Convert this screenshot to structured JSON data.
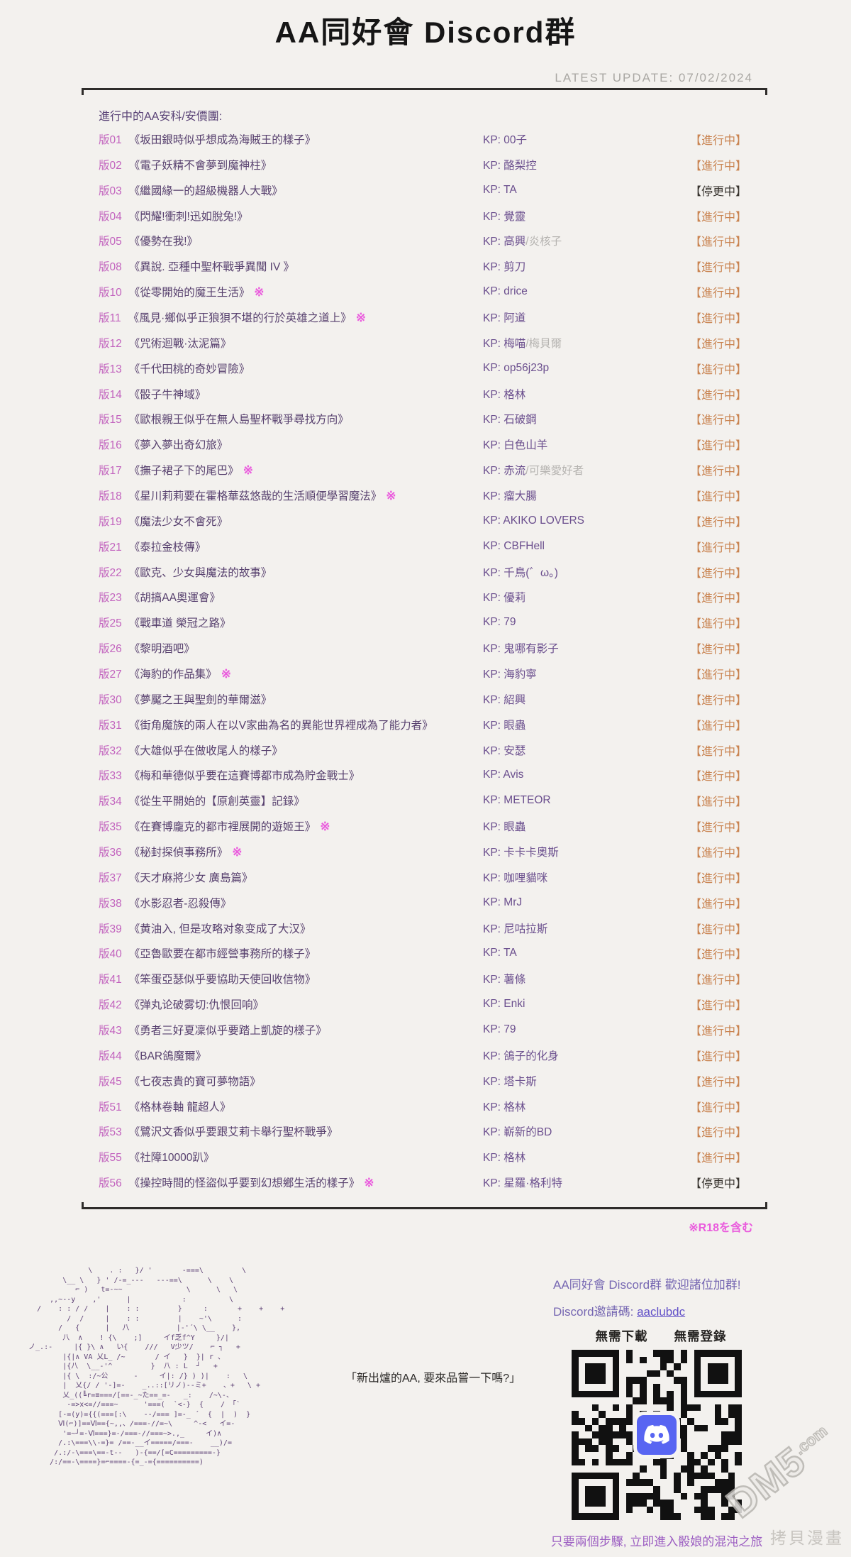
{
  "header": {
    "title": "AA同好會 Discord群",
    "latest_update": "LATEST UPDATE: 07/02/2024"
  },
  "section_label": "進行中的AA安科/安價團:",
  "kp_prefix": "KP: ",
  "r18_mark": "※",
  "r18_note": "※R18を含む",
  "boards": [
    {
      "id": "版01",
      "title": "《坂田銀時似乎想成為海賊王的樣子》",
      "r18": false,
      "kp": "00子",
      "kp_sub": "",
      "status": "【進行中】",
      "paused": false
    },
    {
      "id": "版02",
      "title": "《電子妖精不會夢到魔神柱》",
      "r18": false,
      "kp": "酪梨控",
      "kp_sub": "",
      "status": "【進行中】",
      "paused": false
    },
    {
      "id": "版03",
      "title": "《繼國緣一的超級機器人大戰》",
      "r18": false,
      "kp": "TA",
      "kp_sub": "",
      "status": "【停更中】",
      "paused": true
    },
    {
      "id": "版04",
      "title": "《閃耀!衝刺!迅如脫兔!》",
      "r18": false,
      "kp": "覺靈",
      "kp_sub": "",
      "status": "【進行中】",
      "paused": false
    },
    {
      "id": "版05",
      "title": "《優勢在我!》",
      "r18": false,
      "kp": "高興",
      "kp_sub": "/炎核子",
      "status": "【進行中】",
      "paused": false
    },
    {
      "id": "版08",
      "title": "《異說. 亞種中聖杯戰爭異聞 IV 》",
      "r18": false,
      "kp": "剪刀",
      "kp_sub": "",
      "status": "【進行中】",
      "paused": false
    },
    {
      "id": "版10",
      "title": "《從零開始的魔王生活》",
      "r18": true,
      "kp": "drice",
      "kp_sub": "",
      "status": "【進行中】",
      "paused": false
    },
    {
      "id": "版11",
      "title": "《風見·鄉似乎正狼狽不堪的行於英雄之道上》",
      "r18": true,
      "kp": "阿道",
      "kp_sub": "",
      "status": "【進行中】",
      "paused": false
    },
    {
      "id": "版12",
      "title": "《咒術迴戰·汰泥篇》",
      "r18": false,
      "kp": "梅喵",
      "kp_sub": "/梅貝爾",
      "status": "【進行中】",
      "paused": false
    },
    {
      "id": "版13",
      "title": "《千代田桃的奇妙冒險》",
      "r18": false,
      "kp": "op56j23p",
      "kp_sub": "",
      "status": "【進行中】",
      "paused": false
    },
    {
      "id": "版14",
      "title": "《骰子牛神域》",
      "r18": false,
      "kp": "格林",
      "kp_sub": "",
      "status": "【進行中】",
      "paused": false
    },
    {
      "id": "版15",
      "title": "《歐根親王似乎在無人島聖杯戰爭尋找方向》",
      "r18": false,
      "kp": "石破鋼",
      "kp_sub": "",
      "status": "【進行中】",
      "paused": false
    },
    {
      "id": "版16",
      "title": "《夢入夢出奇幻旅》",
      "r18": false,
      "kp": "白色山羊",
      "kp_sub": "",
      "status": "【進行中】",
      "paused": false
    },
    {
      "id": "版17",
      "title": "《撫子裙子下的尾巴》",
      "r18": true,
      "kp": "赤流",
      "kp_sub": "/可樂愛好者",
      "status": "【進行中】",
      "paused": false
    },
    {
      "id": "版18",
      "title": "《星川莉莉要在霍格華茲悠哉的生活順便學習魔法》",
      "r18": true,
      "kp": "瘤大腸",
      "kp_sub": "",
      "status": "【進行中】",
      "paused": false
    },
    {
      "id": "版19",
      "title": "《魔法少女不會死》",
      "r18": false,
      "kp": "AKIKO LOVERS",
      "kp_sub": "",
      "status": "【進行中】",
      "paused": false
    },
    {
      "id": "版21",
      "title": "《泰拉金枝傳》",
      "r18": false,
      "kp": "CBFHell",
      "kp_sub": "",
      "status": "【進行中】",
      "paused": false
    },
    {
      "id": "版22",
      "title": "《歐克、少女與魔法的故事》",
      "r18": false,
      "kp": "千鳥(゛ω。)",
      "kp_sub": "",
      "status": "【進行中】",
      "paused": false
    },
    {
      "id": "版23",
      "title": "《胡搞AA奧運會》",
      "r18": false,
      "kp": "優莉",
      "kp_sub": "",
      "status": "【進行中】",
      "paused": false
    },
    {
      "id": "版25",
      "title": "《戰車道 榮冠之路》",
      "r18": false,
      "kp": "79",
      "kp_sub": "",
      "status": "【進行中】",
      "paused": false
    },
    {
      "id": "版26",
      "title": "《黎明酒吧》",
      "r18": false,
      "kp": "鬼哪有影子",
      "kp_sub": "",
      "status": "【進行中】",
      "paused": false
    },
    {
      "id": "版27",
      "title": "《海豹的作品集》",
      "r18": true,
      "kp": "海豹寧",
      "kp_sub": "",
      "status": "【進行中】",
      "paused": false
    },
    {
      "id": "版30",
      "title": "《夢魘之王與聖劍的華爾滋》",
      "r18": false,
      "kp": "紹興",
      "kp_sub": "",
      "status": "【進行中】",
      "paused": false
    },
    {
      "id": "版31",
      "title": "《街角魔族的兩人在以V家曲為名的異能世界裡成為了能力者》",
      "r18": false,
      "kp": "眼蟲",
      "kp_sub": "",
      "status": "【進行中】",
      "paused": false
    },
    {
      "id": "版32",
      "title": "《大雄似乎在做收尾人的樣子》",
      "r18": false,
      "kp": "安瑟",
      "kp_sub": "",
      "status": "【進行中】",
      "paused": false
    },
    {
      "id": "版33",
      "title": "《梅和華德似乎要在這賽博都市成為貯金戰士》",
      "r18": false,
      "kp": "Avis",
      "kp_sub": "",
      "status": "【進行中】",
      "paused": false
    },
    {
      "id": "版34",
      "title": "《從生平開始的【原創英靈】記錄》",
      "r18": false,
      "kp": "METEOR",
      "kp_sub": "",
      "status": "【進行中】",
      "paused": false
    },
    {
      "id": "版35",
      "title": "《在賽博龐克的都市裡展開的遊姬王》",
      "r18": true,
      "kp": "眼蟲",
      "kp_sub": "",
      "status": "【進行中】",
      "paused": false
    },
    {
      "id": "版36",
      "title": "《秘封探偵事務所》",
      "r18": true,
      "kp": "卡卡卡奧斯",
      "kp_sub": "",
      "status": "【進行中】",
      "paused": false
    },
    {
      "id": "版37",
      "title": "《天才麻將少女 廣島篇》",
      "r18": false,
      "kp": "咖哩貓咪",
      "kp_sub": "",
      "status": "【進行中】",
      "paused": false
    },
    {
      "id": "版38",
      "title": "《水影忍者-忍殺傳》",
      "r18": false,
      "kp": "MrJ",
      "kp_sub": "",
      "status": "【進行中】",
      "paused": false
    },
    {
      "id": "版39",
      "title": "《黄油入, 但是攻略对象变成了大汉》",
      "r18": false,
      "kp": "尼咕拉斯",
      "kp_sub": "",
      "status": "【進行中】",
      "paused": false
    },
    {
      "id": "版40",
      "title": "《亞魯歐要在都市經營事務所的樣子》",
      "r18": false,
      "kp": "TA",
      "kp_sub": "",
      "status": "【進行中】",
      "paused": false
    },
    {
      "id": "版41",
      "title": "《笨蛋亞瑟似乎要協助天使回收信物》",
      "r18": false,
      "kp": "薯條",
      "kp_sub": "",
      "status": "【進行中】",
      "paused": false
    },
    {
      "id": "版42",
      "title": "《弹丸论破雾切:仇恨回响》",
      "r18": false,
      "kp": "Enki",
      "kp_sub": "",
      "status": "【進行中】",
      "paused": false
    },
    {
      "id": "版43",
      "title": "《勇者三好夏凜似乎要踏上凱旋的樣子》",
      "r18": false,
      "kp": "79",
      "kp_sub": "",
      "status": "【進行中】",
      "paused": false
    },
    {
      "id": "版44",
      "title": "《BAR鴿魔爾》",
      "r18": false,
      "kp": "鴿子的化身",
      "kp_sub": "",
      "status": "【進行中】",
      "paused": false
    },
    {
      "id": "版45",
      "title": "《七夜志貴的寶可夢物語》",
      "r18": false,
      "kp": "塔卡斯",
      "kp_sub": "",
      "status": "【進行中】",
      "paused": false
    },
    {
      "id": "版51",
      "title": "《格林卷軸 龍超人》",
      "r18": false,
      "kp": "格林",
      "kp_sub": "",
      "status": "【進行中】",
      "paused": false
    },
    {
      "id": "版53",
      "title": "《鷺沢文香似乎要跟艾莉卡舉行聖杯戰爭》",
      "r18": false,
      "kp": "嶄新的BD",
      "kp_sub": "",
      "status": "【進行中】",
      "paused": false
    },
    {
      "id": "版55",
      "title": "《社障10000趴》",
      "r18": false,
      "kp": "格林",
      "kp_sub": "",
      "status": "【進行中】",
      "paused": false
    },
    {
      "id": "版56",
      "title": "《操控時間的怪盜似乎要到幻想鄉生活的樣子》",
      "r18": true,
      "kp": "星羅·格利特",
      "kp_sub": "",
      "status": "【停更中】",
      "paused": true
    }
  ],
  "footer": {
    "speech": "「新出爐的AA, 要來品嘗一下嗎?」",
    "invite_heading": "AA同好會 Discord群  歡迎諸位加群!",
    "invite_code_label": "Discord邀請碼: ",
    "invite_code": "aaclubdc",
    "no_download": "無需下載　　無需登錄",
    "qr_caption": "只要兩個步驟, 立即進入骰娘的混沌之旅"
  },
  "watermark": {
    "logo": "DM5",
    "logo_suffix": ".com",
    "text": "拷貝漫畫"
  },
  "ascii_art": {
    "lines": [
      "                \\    . :   }/ '       -===\\         \\",
      "          \\__ \\   } ' /-=_---   ---==\\      \\    \\",
      "             ⌐ )   t=-~~               \\      \\   \\",
      "       ,,~--y    ,'      |            :          \\",
      "    /    : : / /    |    : :         }     :       +    +    +",
      "           /  /     |    : :         |    ~'\\      :",
      "         /   {      |   八           |-'´\\ \\__    },",
      "          八  ∧    ! {\\    ;]     イf乏f^Y     }/|",
      "  ノ_.:-     |{ }\\ ∧   い{    ///   V少ツ/    ⌐ ┐   +",
      "          |{|∧ VA 乂L_ /~       / イ   }  }| r 、",
      "          |{八  \\__-'^         }  八 : L  ┘   +",
      "          |{ \\  :/~公      -     イ|: /} ) )|    :   \\",
      "          |  乂{/ / '-]=-    _..::[リノ)--ミ+    、+   \\ +",
      "          乂_((╚r=≡===/[==-_~た==_=-   _:    /~\\-、",
      "           -=>x<=//===~      '===(  `<-}  {    / 「`",
      "         [-=(y)={{(===[:\\    --/=== ]=-_ ´  {  |  )  }",
      "         Ⅵ(⌐)]==Ⅵ=={~,,、/===-//=~\\     ^-<   イ=-",
      "          '=~┘=-Ⅵ===}=-/===-//===~>.,_     イ)∧",
      "         /.:\\===\\\\-=}= /==-__イ=====/===-    __)/=",
      "        /.:/-\\===\\==-t--   )-{==/[=C=========-}",
      "       /:/==-\\====}=⌐====-{=_-={==========)"
    ]
  },
  "colors": {
    "background": "#f3f1ee",
    "board_id": "#c263be",
    "board_title": "#57406e",
    "kp": "#6b4f8e",
    "kp_secondary": "#b5b3b0",
    "status_active": "#c98350",
    "status_paused": "#38342f",
    "r18": "#ea5cdd",
    "footer_purple": "#7667b2",
    "link": "#6150c8",
    "discord_blurple": "#5865F2"
  }
}
